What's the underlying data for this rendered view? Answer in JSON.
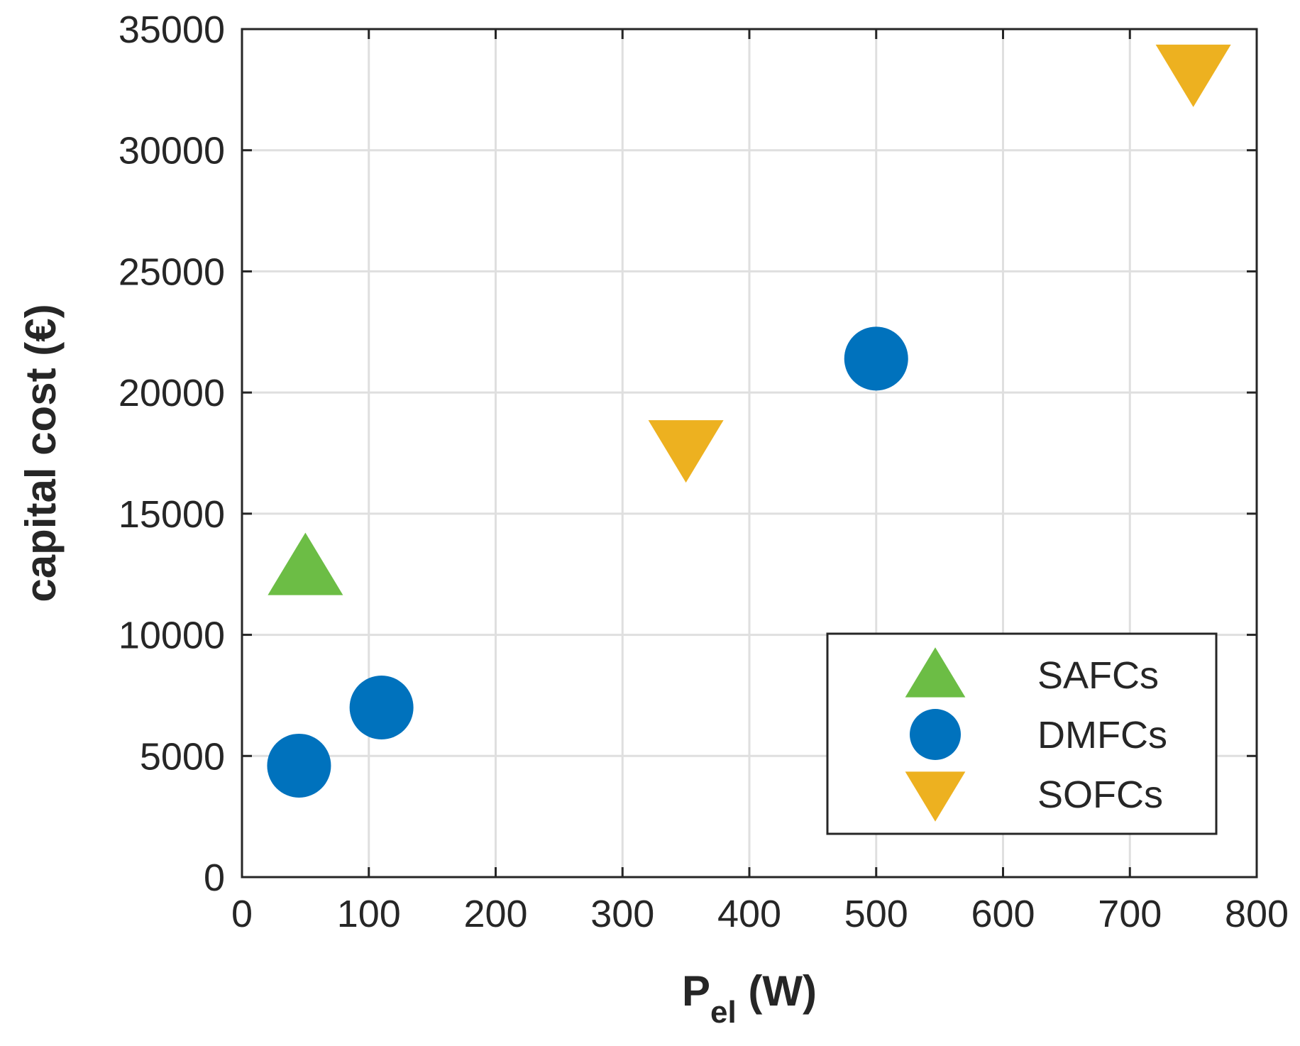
{
  "chart_data": {
    "type": "scatter",
    "title": "",
    "xlabel": "P",
    "xlabel_subscript": "el",
    "xlabel_unit": " (W)",
    "ylabel": "capital cost (€)",
    "xlim": [
      0,
      800
    ],
    "ylim": [
      0,
      35000
    ],
    "xticks": [
      0,
      100,
      200,
      300,
      400,
      500,
      600,
      700,
      800
    ],
    "yticks": [
      0,
      5000,
      10000,
      15000,
      20000,
      25000,
      30000,
      35000
    ],
    "grid": true,
    "legend_position": "bottom-right",
    "series": [
      {
        "name": "SAFCs",
        "marker": "triangle-up",
        "color": "#6cbd45",
        "points": [
          {
            "x": 50,
            "y": 12800
          }
        ]
      },
      {
        "name": "DMFCs",
        "marker": "circle",
        "color": "#0072bd",
        "points": [
          {
            "x": 45,
            "y": 4600
          },
          {
            "x": 110,
            "y": 7000
          },
          {
            "x": 500,
            "y": 21400
          }
        ]
      },
      {
        "name": "SOFCs",
        "marker": "triangle-down",
        "color": "#edb120",
        "points": [
          {
            "x": 350,
            "y": 17700
          },
          {
            "x": 750,
            "y": 33200
          }
        ]
      }
    ]
  }
}
